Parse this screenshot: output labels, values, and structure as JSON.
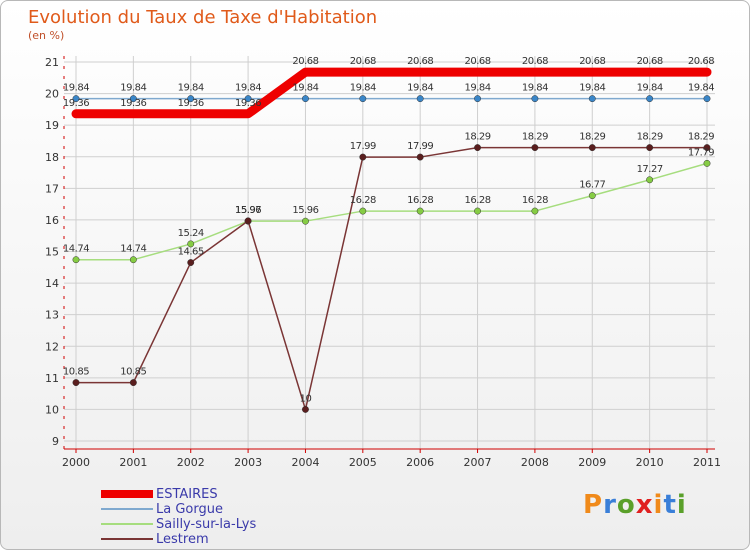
{
  "title": "Evolution du Taux de Taxe d'Habitation",
  "subtitle": "(en %)",
  "brand": "Proxiti",
  "colors": {
    "title": "#e05a1a",
    "legend_text": "#3a3aaa",
    "axis": "#d00000",
    "grid": "#cfcfcf",
    "brand_letters": [
      "#f08a1a",
      "#3a7fd8",
      "#5aa02a",
      "#e02020",
      "#f08a1a",
      "#3a7fd8",
      "#5aa02a"
    ]
  },
  "chart_data": {
    "type": "line",
    "title": "Evolution du Taux de Taxe d'Habitation",
    "ylabel": "(en %)",
    "xlabel": "",
    "ylim": [
      9,
      21
    ],
    "yticks": [
      "9",
      "10",
      "11",
      "12",
      "13",
      "14",
      "15",
      "16",
      "17",
      "18",
      "19",
      "20",
      "21"
    ],
    "categories": [
      "2000",
      "2001",
      "2002",
      "2003",
      "2004",
      "2005",
      "2006",
      "2007",
      "2008",
      "2009",
      "2010",
      "2011"
    ],
    "grid": true,
    "legend_position": "bottom-left",
    "series": [
      {
        "name": "La Gorgue",
        "color": "#7fa9cf",
        "marker": "#3a86c8",
        "width": 1.5,
        "markers": true,
        "values": [
          19.84,
          19.84,
          19.84,
          19.84,
          19.84,
          19.84,
          19.84,
          19.84,
          19.84,
          19.84,
          19.84,
          19.84
        ],
        "labels": [
          "19.84",
          "19.84",
          "19.84",
          "19.84",
          "19.84",
          "19.84",
          "19.84",
          "19.84",
          "19.84",
          "19.84",
          "19.84",
          "19.84"
        ]
      },
      {
        "name": "Sailly-sur-la-Lys",
        "color": "#a6dd7e",
        "marker": "#86cc44",
        "width": 1.5,
        "markers": true,
        "values": [
          14.74,
          14.74,
          15.24,
          15.96,
          15.96,
          16.28,
          16.28,
          16.28,
          16.28,
          16.77,
          17.27,
          17.79
        ],
        "labels": [
          "14.74",
          "14.74",
          "15.24",
          "15.96",
          "15.96",
          "16.28",
          "16.28",
          "16.28",
          "16.28",
          "16.77",
          "17.27",
          "17.79"
        ]
      },
      {
        "name": "Lestrem",
        "color": "#7a3535",
        "marker": "#5a1e1e",
        "width": 1.5,
        "markers": true,
        "values": [
          10.85,
          10.85,
          14.65,
          15.97,
          10,
          17.99,
          17.99,
          18.29,
          18.29,
          18.29,
          18.29,
          18.29
        ],
        "labels": [
          "10.85",
          "10.85",
          "14.65",
          "15.97",
          "10",
          "17.99",
          "17.99",
          "18.29",
          "18.29",
          "18.29",
          "18.29",
          "18.29"
        ]
      },
      {
        "name": "ESTAIRES",
        "color": "#ee0000",
        "marker": "#ee0000",
        "width": 9,
        "markers": false,
        "values": [
          19.36,
          19.36,
          19.36,
          19.36,
          20.68,
          20.68,
          20.68,
          20.68,
          20.68,
          20.68,
          20.68,
          20.68
        ],
        "labels": [
          "19.36",
          "19.36",
          "19.36",
          "19.36",
          "20.68",
          "20.68",
          "20.68",
          "20.68",
          "20.68",
          "20.68",
          "20.68",
          "20.68"
        ]
      }
    ],
    "legend": [
      "ESTAIRES",
      "La Gorgue",
      "Sailly-sur-la-Lys",
      "Lestrem"
    ]
  }
}
